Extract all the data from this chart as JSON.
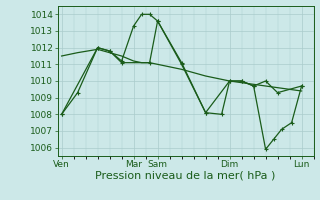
{
  "background_color": "#cce8e8",
  "grid_color": "#aacccc",
  "line_color": "#1a5c1a",
  "xlabel": "Pression niveau de la mer( hPa )",
  "ylim": [
    1005.5,
    1014.5
  ],
  "yticks": [
    1006,
    1007,
    1008,
    1009,
    1010,
    1011,
    1012,
    1013,
    1014
  ],
  "x_tick_labels": [
    "Ven",
    "Mar",
    "Sam",
    "Dim",
    "Lun"
  ],
  "x_tick_positions": [
    0,
    36,
    48,
    84,
    120
  ],
  "xlim": [
    -2,
    126
  ],
  "series1_x": [
    0,
    8,
    18,
    24,
    30,
    36,
    40,
    44,
    48,
    60,
    72,
    80,
    84,
    90,
    96,
    102,
    108,
    120
  ],
  "series1_y": [
    1008.0,
    1009.3,
    1012.0,
    1011.8,
    1011.2,
    1013.3,
    1014.0,
    1014.0,
    1013.6,
    1011.1,
    1008.1,
    1008.0,
    1010.0,
    1010.0,
    1009.7,
    1010.0,
    1009.3,
    1009.7
  ],
  "series2_x": [
    0,
    8,
    18,
    24,
    30,
    36,
    40,
    44,
    48,
    60,
    72,
    80,
    84,
    90,
    96,
    102,
    108,
    120
  ],
  "series2_y": [
    1011.5,
    1011.7,
    1011.9,
    1011.7,
    1011.5,
    1011.2,
    1011.1,
    1011.1,
    1011.0,
    1010.7,
    1010.3,
    1010.1,
    1010.0,
    1009.9,
    1009.8,
    1009.7,
    1009.6,
    1009.4
  ],
  "series3_x": [
    0,
    18,
    24,
    30,
    44,
    48,
    60,
    72,
    84,
    90,
    96,
    102,
    106,
    110,
    115,
    120
  ],
  "series3_y": [
    1008.0,
    1012.0,
    1011.8,
    1011.1,
    1011.1,
    1013.6,
    1011.0,
    1008.1,
    1010.0,
    1010.0,
    1009.7,
    1005.9,
    1006.5,
    1007.1,
    1007.5,
    1009.7
  ],
  "xlabel_fontsize": 8,
  "tick_fontsize": 6.5,
  "marker": "+"
}
